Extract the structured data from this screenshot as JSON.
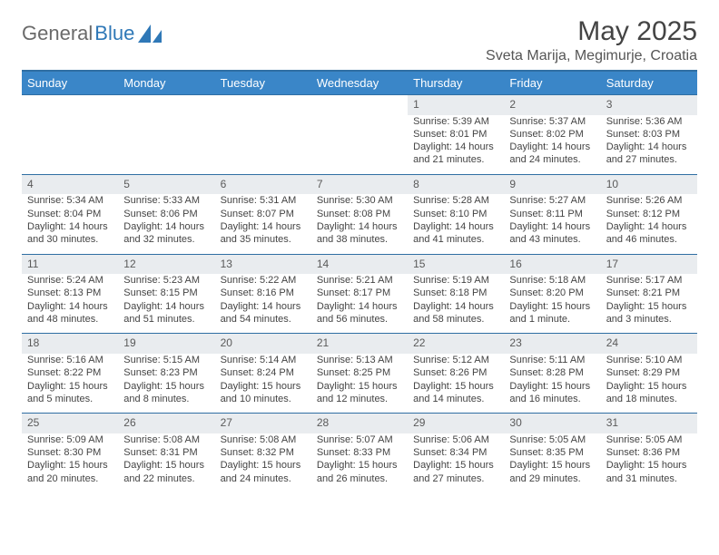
{
  "brand": {
    "part1": "General",
    "part2": "Blue"
  },
  "title": "May 2025",
  "location": "Sveta Marija, Megimurje, Croatia",
  "colors": {
    "header_bg": "#3a86c8",
    "header_border": "#2f6ea3",
    "daynum_bg": "#e9ecef",
    "text": "#444444"
  },
  "weekdays": [
    "Sunday",
    "Monday",
    "Tuesday",
    "Wednesday",
    "Thursday",
    "Friday",
    "Saturday"
  ],
  "weeks": [
    [
      null,
      null,
      null,
      null,
      {
        "n": "1",
        "sr": "Sunrise: 5:39 AM",
        "ss": "Sunset: 8:01 PM",
        "d1": "Daylight: 14 hours",
        "d2": "and 21 minutes."
      },
      {
        "n": "2",
        "sr": "Sunrise: 5:37 AM",
        "ss": "Sunset: 8:02 PM",
        "d1": "Daylight: 14 hours",
        "d2": "and 24 minutes."
      },
      {
        "n": "3",
        "sr": "Sunrise: 5:36 AM",
        "ss": "Sunset: 8:03 PM",
        "d1": "Daylight: 14 hours",
        "d2": "and 27 minutes."
      }
    ],
    [
      {
        "n": "4",
        "sr": "Sunrise: 5:34 AM",
        "ss": "Sunset: 8:04 PM",
        "d1": "Daylight: 14 hours",
        "d2": "and 30 minutes."
      },
      {
        "n": "5",
        "sr": "Sunrise: 5:33 AM",
        "ss": "Sunset: 8:06 PM",
        "d1": "Daylight: 14 hours",
        "d2": "and 32 minutes."
      },
      {
        "n": "6",
        "sr": "Sunrise: 5:31 AM",
        "ss": "Sunset: 8:07 PM",
        "d1": "Daylight: 14 hours",
        "d2": "and 35 minutes."
      },
      {
        "n": "7",
        "sr": "Sunrise: 5:30 AM",
        "ss": "Sunset: 8:08 PM",
        "d1": "Daylight: 14 hours",
        "d2": "and 38 minutes."
      },
      {
        "n": "8",
        "sr": "Sunrise: 5:28 AM",
        "ss": "Sunset: 8:10 PM",
        "d1": "Daylight: 14 hours",
        "d2": "and 41 minutes."
      },
      {
        "n": "9",
        "sr": "Sunrise: 5:27 AM",
        "ss": "Sunset: 8:11 PM",
        "d1": "Daylight: 14 hours",
        "d2": "and 43 minutes."
      },
      {
        "n": "10",
        "sr": "Sunrise: 5:26 AM",
        "ss": "Sunset: 8:12 PM",
        "d1": "Daylight: 14 hours",
        "d2": "and 46 minutes."
      }
    ],
    [
      {
        "n": "11",
        "sr": "Sunrise: 5:24 AM",
        "ss": "Sunset: 8:13 PM",
        "d1": "Daylight: 14 hours",
        "d2": "and 48 minutes."
      },
      {
        "n": "12",
        "sr": "Sunrise: 5:23 AM",
        "ss": "Sunset: 8:15 PM",
        "d1": "Daylight: 14 hours",
        "d2": "and 51 minutes."
      },
      {
        "n": "13",
        "sr": "Sunrise: 5:22 AM",
        "ss": "Sunset: 8:16 PM",
        "d1": "Daylight: 14 hours",
        "d2": "and 54 minutes."
      },
      {
        "n": "14",
        "sr": "Sunrise: 5:21 AM",
        "ss": "Sunset: 8:17 PM",
        "d1": "Daylight: 14 hours",
        "d2": "and 56 minutes."
      },
      {
        "n": "15",
        "sr": "Sunrise: 5:19 AM",
        "ss": "Sunset: 8:18 PM",
        "d1": "Daylight: 14 hours",
        "d2": "and 58 minutes."
      },
      {
        "n": "16",
        "sr": "Sunrise: 5:18 AM",
        "ss": "Sunset: 8:20 PM",
        "d1": "Daylight: 15 hours",
        "d2": "and 1 minute."
      },
      {
        "n": "17",
        "sr": "Sunrise: 5:17 AM",
        "ss": "Sunset: 8:21 PM",
        "d1": "Daylight: 15 hours",
        "d2": "and 3 minutes."
      }
    ],
    [
      {
        "n": "18",
        "sr": "Sunrise: 5:16 AM",
        "ss": "Sunset: 8:22 PM",
        "d1": "Daylight: 15 hours",
        "d2": "and 5 minutes."
      },
      {
        "n": "19",
        "sr": "Sunrise: 5:15 AM",
        "ss": "Sunset: 8:23 PM",
        "d1": "Daylight: 15 hours",
        "d2": "and 8 minutes."
      },
      {
        "n": "20",
        "sr": "Sunrise: 5:14 AM",
        "ss": "Sunset: 8:24 PM",
        "d1": "Daylight: 15 hours",
        "d2": "and 10 minutes."
      },
      {
        "n": "21",
        "sr": "Sunrise: 5:13 AM",
        "ss": "Sunset: 8:25 PM",
        "d1": "Daylight: 15 hours",
        "d2": "and 12 minutes."
      },
      {
        "n": "22",
        "sr": "Sunrise: 5:12 AM",
        "ss": "Sunset: 8:26 PM",
        "d1": "Daylight: 15 hours",
        "d2": "and 14 minutes."
      },
      {
        "n": "23",
        "sr": "Sunrise: 5:11 AM",
        "ss": "Sunset: 8:28 PM",
        "d1": "Daylight: 15 hours",
        "d2": "and 16 minutes."
      },
      {
        "n": "24",
        "sr": "Sunrise: 5:10 AM",
        "ss": "Sunset: 8:29 PM",
        "d1": "Daylight: 15 hours",
        "d2": "and 18 minutes."
      }
    ],
    [
      {
        "n": "25",
        "sr": "Sunrise: 5:09 AM",
        "ss": "Sunset: 8:30 PM",
        "d1": "Daylight: 15 hours",
        "d2": "and 20 minutes."
      },
      {
        "n": "26",
        "sr": "Sunrise: 5:08 AM",
        "ss": "Sunset: 8:31 PM",
        "d1": "Daylight: 15 hours",
        "d2": "and 22 minutes."
      },
      {
        "n": "27",
        "sr": "Sunrise: 5:08 AM",
        "ss": "Sunset: 8:32 PM",
        "d1": "Daylight: 15 hours",
        "d2": "and 24 minutes."
      },
      {
        "n": "28",
        "sr": "Sunrise: 5:07 AM",
        "ss": "Sunset: 8:33 PM",
        "d1": "Daylight: 15 hours",
        "d2": "and 26 minutes."
      },
      {
        "n": "29",
        "sr": "Sunrise: 5:06 AM",
        "ss": "Sunset: 8:34 PM",
        "d1": "Daylight: 15 hours",
        "d2": "and 27 minutes."
      },
      {
        "n": "30",
        "sr": "Sunrise: 5:05 AM",
        "ss": "Sunset: 8:35 PM",
        "d1": "Daylight: 15 hours",
        "d2": "and 29 minutes."
      },
      {
        "n": "31",
        "sr": "Sunrise: 5:05 AM",
        "ss": "Sunset: 8:36 PM",
        "d1": "Daylight: 15 hours",
        "d2": "and 31 minutes."
      }
    ]
  ]
}
